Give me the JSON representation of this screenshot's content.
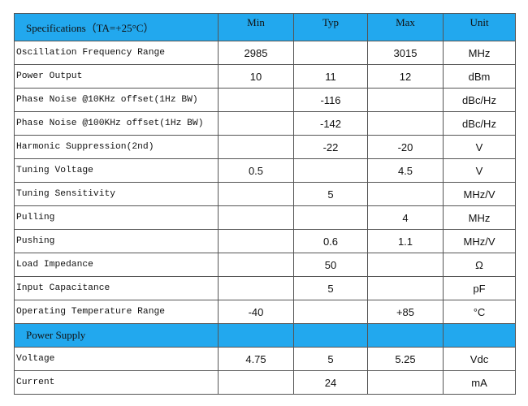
{
  "table": {
    "header": [
      "Specifications（TA=+25°C）",
      "Min",
      "Typ",
      "Max",
      "Unit"
    ],
    "rows": [
      [
        "Oscillation Frequency Range",
        "2985",
        null,
        "3015",
        "MHz"
      ],
      [
        "Power Output",
        "10",
        "11",
        "12",
        "dBm"
      ],
      [
        "Phase Noise @10KHz offset(1Hz BW)",
        null,
        "-116",
        null,
        "dBc/Hz"
      ],
      [
        "Phase Noise @100KHz offset(1Hz BW)",
        null,
        "-142",
        null,
        "dBc/Hz"
      ],
      [
        "Harmonic Suppression(2nd)",
        null,
        "-22",
        "-20",
        "V"
      ],
      [
        "Tuning Voltage",
        "0.5",
        null,
        "4.5",
        "V"
      ],
      [
        "Tuning Sensitivity",
        null,
        "5",
        null,
        "MHz/V"
      ],
      [
        "Pulling",
        null,
        null,
        "4",
        "MHz"
      ],
      [
        "Pushing",
        null,
        "0.6",
        "1.1",
        "MHz/V"
      ],
      [
        "Load Impedance",
        null,
        "50",
        null,
        "Ω"
      ],
      [
        "Input Capacitance",
        null,
        "5",
        null,
        "pF"
      ],
      [
        "Operating Temperature Range",
        "-40",
        null,
        "+85",
        "°C"
      ],
      [
        "Power Supply",
        null,
        null,
        null,
        null
      ],
      [
        "Voltage",
        "4.75",
        "5",
        "5.25",
        "Vdc"
      ],
      [
        "Current",
        null,
        "24",
        null,
        "mA"
      ]
    ],
    "section_rows": [
      12
    ]
  }
}
